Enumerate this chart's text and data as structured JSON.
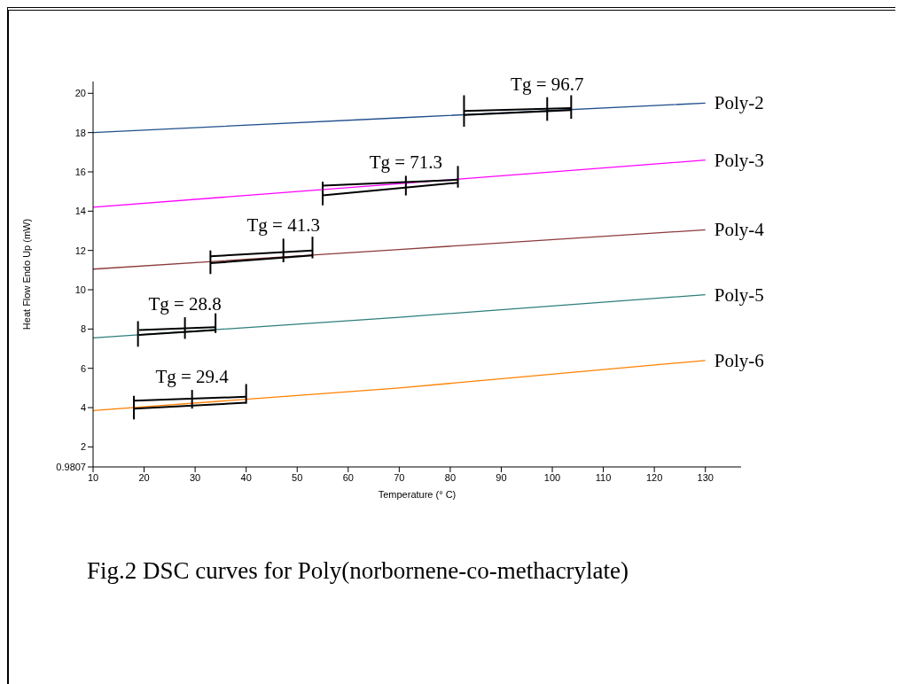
{
  "chart_data": {
    "type": "line",
    "title": "Fig.2 DSC curves for Poly(norbornene-co-methacrylate)",
    "xlabel": "Temperature (° C)",
    "ylabel": "Heat Flow Endo Up (mW)",
    "xlim": [
      10,
      137
    ],
    "xticks": [
      10,
      20,
      30,
      40,
      50,
      60,
      70,
      80,
      90,
      100,
      110,
      120,
      130
    ],
    "ylim": [
      0.9807,
      20.6
    ],
    "yticks": [
      0.9807,
      2,
      4,
      6,
      8,
      10,
      12,
      14,
      16,
      18,
      20
    ],
    "marker": "none",
    "line_style": "solid",
    "series": [
      {
        "name": "Poly-2",
        "color": "#1f4e8c",
        "x": [
          10,
          70,
          130
        ],
        "values": [
          18.0,
          18.75,
          19.5
        ]
      },
      {
        "name": "Poly-3",
        "color": "#ff00ff",
        "x": [
          10,
          70,
          130
        ],
        "values": [
          14.2,
          15.4,
          16.6
        ]
      },
      {
        "name": "Poly-4",
        "color": "#8b3a3a",
        "x": [
          10,
          70,
          130
        ],
        "values": [
          11.05,
          12.05,
          13.05
        ]
      },
      {
        "name": "Poly-5",
        "color": "#2e7d7d",
        "x": [
          10,
          70,
          130
        ],
        "values": [
          7.55,
          8.6,
          9.75
        ]
      },
      {
        "name": "Poly-6",
        "color": "#ff8000",
        "x": [
          10,
          70,
          130
        ],
        "values": [
          3.85,
          5.0,
          6.4
        ]
      },
      {
        "color": "#000000",
        "x": [
          82.7,
          103.7
        ],
        "values": [
          19.1,
          19.25
        ]
      },
      {
        "color": "#000000",
        "x": [
          82.7,
          103.7
        ],
        "values": [
          18.9,
          19.15
        ]
      },
      {
        "color": "#000000",
        "x": [
          82.7,
          82.7
        ],
        "values": [
          18.3,
          19.9
        ]
      },
      {
        "color": "#000000",
        "x": [
          99,
          99
        ],
        "values": [
          18.6,
          19.8
        ]
      },
      {
        "color": "#000000",
        "x": [
          103.7,
          103.7
        ],
        "values": [
          18.7,
          19.9
        ]
      },
      {
        "color": "#000000",
        "x": [
          55,
          81.5
        ],
        "values": [
          15.3,
          15.6
        ]
      },
      {
        "color": "#000000",
        "x": [
          55,
          81.5
        ],
        "values": [
          14.8,
          15.45
        ]
      },
      {
        "color": "#000000",
        "x": [
          55,
          55
        ],
        "values": [
          14.3,
          15.5
        ]
      },
      {
        "color": "#000000",
        "x": [
          71.3,
          71.3
        ],
        "values": [
          14.8,
          15.8
        ]
      },
      {
        "color": "#000000",
        "x": [
          81.5,
          81.5
        ],
        "values": [
          15.2,
          16.3
        ]
      },
      {
        "color": "#000000",
        "x": [
          33,
          53
        ],
        "values": [
          11.7,
          12.0
        ]
      },
      {
        "color": "#000000",
        "x": [
          33,
          53
        ],
        "values": [
          11.35,
          11.75
        ]
      },
      {
        "color": "#000000",
        "x": [
          33,
          33
        ],
        "values": [
          10.8,
          12.0
        ]
      },
      {
        "color": "#000000",
        "x": [
          47.3,
          47.3
        ],
        "values": [
          11.4,
          12.6
        ]
      },
      {
        "color": "#000000",
        "x": [
          53,
          53
        ],
        "values": [
          11.6,
          12.7
        ]
      },
      {
        "color": "#000000",
        "x": [
          19,
          34
        ],
        "values": [
          7.95,
          8.1
        ]
      },
      {
        "color": "#000000",
        "x": [
          19,
          34
        ],
        "values": [
          7.7,
          7.95
        ]
      },
      {
        "color": "#000000",
        "x": [
          18.8,
          18.8
        ],
        "values": [
          7.1,
          8.4
        ]
      },
      {
        "color": "#000000",
        "x": [
          28,
          28
        ],
        "values": [
          7.5,
          8.6
        ]
      },
      {
        "color": "#000000",
        "x": [
          34,
          34
        ],
        "values": [
          7.8,
          8.8
        ]
      },
      {
        "color": "#000000",
        "x": [
          18,
          40
        ],
        "values": [
          4.35,
          4.55
        ]
      },
      {
        "color": "#000000",
        "x": [
          18,
          40
        ],
        "values": [
          3.95,
          4.25
        ]
      },
      {
        "color": "#000000",
        "x": [
          18,
          18
        ],
        "values": [
          3.4,
          4.6
        ]
      },
      {
        "color": "#000000",
        "x": [
          29.4,
          29.4
        ],
        "values": [
          3.95,
          4.9
        ]
      },
      {
        "color": "#000000",
        "x": [
          40,
          40
        ],
        "values": [
          4.2,
          5.2
        ]
      }
    ],
    "annotations": [
      {
        "text": "Tg = 96.7",
        "x": 99,
        "y": 19.8
      },
      {
        "text": "Tg = 71.3",
        "x": 71.3,
        "y": 15.8
      },
      {
        "text": "Tg = 41.3",
        "x": 47.3,
        "y": 12.6
      },
      {
        "text": "Tg = 28.8",
        "x": 28,
        "y": 8.6
      },
      {
        "text": "Tg = 29.4",
        "x": 29.4,
        "y": 4.9
      }
    ]
  }
}
